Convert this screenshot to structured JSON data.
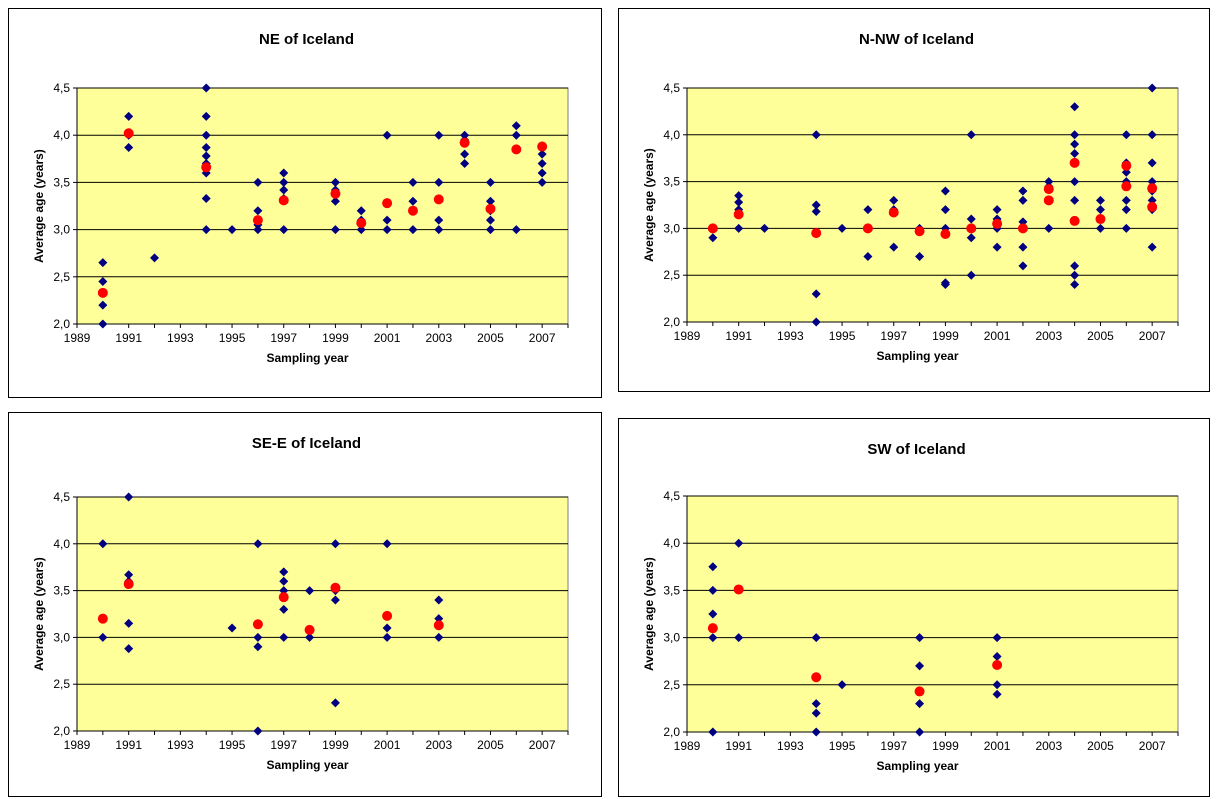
{
  "colors": {
    "plot_background": "#ffff99",
    "individual_marker": "#000080",
    "average_marker": "#ff0000",
    "gridline": "#000000"
  },
  "chart_data": [
    {
      "type": "scatter",
      "title": "NE of Iceland",
      "xlabel": "Sampling year",
      "ylabel": "Average age (years)",
      "xlim": [
        1989,
        2008
      ],
      "ylim": [
        2.0,
        4.5
      ],
      "xticks": [
        "1989",
        "1991",
        "1993",
        "1995",
        "1997",
        "1999",
        "2001",
        "2003",
        "2005",
        "2007"
      ],
      "yticks": [
        "2,0",
        "2,5",
        "3,0",
        "3,5",
        "4,0",
        "4,5"
      ],
      "grid": "horizontal",
      "legend": "none",
      "series": [
        {
          "marker": "diamond",
          "points": [
            [
              1990,
              2.0
            ],
            [
              1990,
              2.2
            ],
            [
              1990,
              2.45
            ],
            [
              1990,
              2.65
            ],
            [
              1991,
              3.87
            ],
            [
              1991,
              4.0
            ],
            [
              1991,
              4.2
            ],
            [
              1992,
              2.7
            ],
            [
              1994,
              3.0
            ],
            [
              1994,
              3.33
            ],
            [
              1994,
              3.6
            ],
            [
              1994,
              3.7
            ],
            [
              1994,
              3.78
            ],
            [
              1994,
              3.87
            ],
            [
              1994,
              4.0
            ],
            [
              1994,
              4.2
            ],
            [
              1994,
              4.5
            ],
            [
              1995,
              3.0
            ],
            [
              1996,
              3.0
            ],
            [
              1996,
              3.05
            ],
            [
              1996,
              3.2
            ],
            [
              1996,
              3.5
            ],
            [
              1997,
              3.0
            ],
            [
              1997,
              3.33
            ],
            [
              1997,
              3.42
            ],
            [
              1997,
              3.5
            ],
            [
              1997,
              3.6
            ],
            [
              1999,
              3.0
            ],
            [
              1999,
              3.3
            ],
            [
              1999,
              3.42
            ],
            [
              1999,
              3.5
            ],
            [
              2000,
              3.0
            ],
            [
              2000,
              3.05
            ],
            [
              2000,
              3.1
            ],
            [
              2000,
              3.2
            ],
            [
              2001,
              3.0
            ],
            [
              2001,
              3.1
            ],
            [
              2001,
              3.28
            ],
            [
              2001,
              4.0
            ],
            [
              2002,
              3.0
            ],
            [
              2002,
              3.2
            ],
            [
              2002,
              3.3
            ],
            [
              2002,
              3.5
            ],
            [
              2003,
              3.0
            ],
            [
              2003,
              3.1
            ],
            [
              2003,
              3.5
            ],
            [
              2003,
              4.0
            ],
            [
              2004,
              3.7
            ],
            [
              2004,
              3.8
            ],
            [
              2004,
              3.95
            ],
            [
              2004,
              4.0
            ],
            [
              2005,
              3.0
            ],
            [
              2005,
              3.1
            ],
            [
              2005,
              3.2
            ],
            [
              2005,
              3.3
            ],
            [
              2005,
              3.5
            ],
            [
              2006,
              3.0
            ],
            [
              2006,
              3.85
            ],
            [
              2006,
              4.0
            ],
            [
              2006,
              4.1
            ],
            [
              2007,
              3.5
            ],
            [
              2007,
              3.6
            ],
            [
              2007,
              3.7
            ],
            [
              2007,
              3.8
            ],
            [
              2007,
              3.87
            ]
          ]
        },
        {
          "marker": "circle",
          "points": [
            [
              1990,
              2.33
            ],
            [
              1991,
              4.02
            ],
            [
              1994,
              3.66
            ],
            [
              1996,
              3.1
            ],
            [
              1997,
              3.31
            ],
            [
              1999,
              3.38
            ],
            [
              2000,
              3.07
            ],
            [
              2001,
              3.28
            ],
            [
              2002,
              3.2
            ],
            [
              2003,
              3.32
            ],
            [
              2004,
              3.92
            ],
            [
              2005,
              3.22
            ],
            [
              2006,
              3.85
            ],
            [
              2007,
              3.88
            ]
          ]
        }
      ]
    },
    {
      "type": "scatter",
      "title": "N-NW of Iceland",
      "xlabel": "Sampling year",
      "ylabel": "Average age (years)",
      "xlim": [
        1989,
        2008
      ],
      "ylim": [
        2.0,
        4.5
      ],
      "xticks": [
        "1989",
        "1991",
        "1993",
        "1995",
        "1997",
        "1999",
        "2001",
        "2003",
        "2005",
        "2007"
      ],
      "yticks": [
        "2,0",
        "2,5",
        "3,0",
        "3,5",
        "4,0",
        "4,5"
      ],
      "grid": "horizontal",
      "legend": "none",
      "series": [
        {
          "marker": "diamond",
          "points": [
            [
              1990,
              2.9
            ],
            [
              1990,
              3.0
            ],
            [
              1991,
              3.0
            ],
            [
              1991,
              3.2
            ],
            [
              1991,
              3.28
            ],
            [
              1991,
              3.35
            ],
            [
              1992,
              3.0
            ],
            [
              1994,
              2.0
            ],
            [
              1994,
              2.3
            ],
            [
              1994,
              3.18
            ],
            [
              1994,
              3.25
            ],
            [
              1994,
              4.0
            ],
            [
              1995,
              3.0
            ],
            [
              1996,
              2.7
            ],
            [
              1996,
              3.0
            ],
            [
              1996,
              3.2
            ],
            [
              1997,
              2.8
            ],
            [
              1997,
              3.2
            ],
            [
              1997,
              3.3
            ],
            [
              1998,
              2.7
            ],
            [
              1998,
              3.0
            ],
            [
              1999,
              2.4
            ],
            [
              1999,
              2.42
            ],
            [
              1999,
              3.0
            ],
            [
              1999,
              3.2
            ],
            [
              1999,
              3.4
            ],
            [
              2000,
              2.5
            ],
            [
              2000,
              2.9
            ],
            [
              2000,
              3.0
            ],
            [
              2000,
              3.1
            ],
            [
              2000,
              4.0
            ],
            [
              2001,
              2.8
            ],
            [
              2001,
              3.0
            ],
            [
              2001,
              3.1
            ],
            [
              2001,
              3.2
            ],
            [
              2002,
              2.6
            ],
            [
              2002,
              2.8
            ],
            [
              2002,
              3.0
            ],
            [
              2002,
              3.07
            ],
            [
              2002,
              3.3
            ],
            [
              2002,
              3.4
            ],
            [
              2003,
              3.0
            ],
            [
              2003,
              3.3
            ],
            [
              2003,
              3.45
            ],
            [
              2003,
              3.5
            ],
            [
              2004,
              2.4
            ],
            [
              2004,
              2.5
            ],
            [
              2004,
              2.6
            ],
            [
              2004,
              3.3
            ],
            [
              2004,
              3.5
            ],
            [
              2004,
              3.8
            ],
            [
              2004,
              3.9
            ],
            [
              2004,
              4.0
            ],
            [
              2004,
              4.3
            ],
            [
              2005,
              3.0
            ],
            [
              2005,
              3.1
            ],
            [
              2005,
              3.2
            ],
            [
              2005,
              3.3
            ],
            [
              2006,
              3.0
            ],
            [
              2006,
              3.2
            ],
            [
              2006,
              3.3
            ],
            [
              2006,
              3.5
            ],
            [
              2006,
              3.6
            ],
            [
              2006,
              3.7
            ],
            [
              2006,
              4.0
            ],
            [
              2007,
              2.8
            ],
            [
              2007,
              3.2
            ],
            [
              2007,
              3.3
            ],
            [
              2007,
              3.4
            ],
            [
              2007,
              3.5
            ],
            [
              2007,
              3.7
            ],
            [
              2007,
              4.0
            ],
            [
              2007,
              4.5
            ]
          ]
        },
        {
          "marker": "circle",
          "points": [
            [
              1990,
              3.0
            ],
            [
              1991,
              3.15
            ],
            [
              1994,
              2.95
            ],
            [
              1996,
              3.0
            ],
            [
              1997,
              3.17
            ],
            [
              1998,
              2.97
            ],
            [
              1999,
              2.94
            ],
            [
              2000,
              3.0
            ],
            [
              2001,
              3.05
            ],
            [
              2002,
              3.0
            ],
            [
              2003,
              3.3
            ],
            [
              2003,
              3.42
            ],
            [
              2004,
              3.08
            ],
            [
              2004,
              3.7
            ],
            [
              2005,
              3.1
            ],
            [
              2006,
              3.45
            ],
            [
              2006,
              3.67
            ],
            [
              2007,
              3.23
            ],
            [
              2007,
              3.43
            ]
          ]
        }
      ]
    },
    {
      "type": "scatter",
      "title": "SE-E of Iceland",
      "xlabel": "Sampling year",
      "ylabel": "Average age (years)",
      "xlim": [
        1989,
        2008
      ],
      "ylim": [
        2.0,
        4.5
      ],
      "xticks": [
        "1989",
        "1991",
        "1993",
        "1995",
        "1997",
        "1999",
        "2001",
        "2003",
        "2005",
        "2007"
      ],
      "yticks": [
        "2,0",
        "2,5",
        "3,0",
        "3,5",
        "4,0",
        "4,5"
      ],
      "grid": "horizontal",
      "legend": "none",
      "series": [
        {
          "marker": "diamond",
          "points": [
            [
              1990,
              3.0
            ],
            [
              1990,
              4.0
            ],
            [
              1991,
              2.88
            ],
            [
              1991,
              3.15
            ],
            [
              1991,
              3.6
            ],
            [
              1991,
              3.67
            ],
            [
              1991,
              4.5
            ],
            [
              1995,
              3.1
            ],
            [
              1996,
              2.0
            ],
            [
              1996,
              2.9
            ],
            [
              1996,
              3.0
            ],
            [
              1996,
              4.0
            ],
            [
              1997,
              3.0
            ],
            [
              1997,
              3.3
            ],
            [
              1997,
              3.5
            ],
            [
              1997,
              3.6
            ],
            [
              1997,
              3.7
            ],
            [
              1998,
              3.0
            ],
            [
              1998,
              3.5
            ],
            [
              1999,
              2.3
            ],
            [
              1999,
              3.4
            ],
            [
              1999,
              3.5
            ],
            [
              1999,
              4.0
            ],
            [
              2001,
              3.0
            ],
            [
              2001,
              3.1
            ],
            [
              2001,
              4.0
            ],
            [
              2003,
              3.0
            ],
            [
              2003,
              3.2
            ],
            [
              2003,
              3.4
            ]
          ]
        },
        {
          "marker": "circle",
          "points": [
            [
              1990,
              3.2
            ],
            [
              1991,
              3.57
            ],
            [
              1996,
              3.14
            ],
            [
              1997,
              3.43
            ],
            [
              1998,
              3.08
            ],
            [
              1999,
              3.53
            ],
            [
              2001,
              3.23
            ],
            [
              2003,
              3.13
            ]
          ]
        }
      ]
    },
    {
      "type": "scatter",
      "title": "SW of Iceland",
      "xlabel": "Sampling year",
      "ylabel": "Average age (years)",
      "xlim": [
        1989,
        2008
      ],
      "ylim": [
        2.0,
        4.5
      ],
      "xticks": [
        "1989",
        "1991",
        "1993",
        "1995",
        "1997",
        "1999",
        "2001",
        "2003",
        "2005",
        "2007"
      ],
      "yticks": [
        "2,0",
        "2,5",
        "3,0",
        "3,5",
        "4,0",
        "4,5"
      ],
      "grid": "horizontal",
      "legend": "none",
      "series": [
        {
          "marker": "diamond",
          "points": [
            [
              1990,
              2.0
            ],
            [
              1990,
              3.0
            ],
            [
              1990,
              3.25
            ],
            [
              1990,
              3.5
            ],
            [
              1990,
              3.75
            ],
            [
              1991,
              3.0
            ],
            [
              1991,
              4.0
            ],
            [
              1994,
              2.0
            ],
            [
              1994,
              2.2
            ],
            [
              1994,
              2.3
            ],
            [
              1994,
              3.0
            ],
            [
              1995,
              2.5
            ],
            [
              1998,
              2.0
            ],
            [
              1998,
              2.3
            ],
            [
              1998,
              2.7
            ],
            [
              1998,
              3.0
            ],
            [
              2001,
              2.4
            ],
            [
              2001,
              2.5
            ],
            [
              2001,
              2.8
            ],
            [
              2001,
              3.0
            ]
          ]
        },
        {
          "marker": "circle",
          "points": [
            [
              1990,
              3.1
            ],
            [
              1991,
              3.51
            ],
            [
              1994,
              2.58
            ],
            [
              1998,
              2.43
            ],
            [
              2001,
              2.71
            ]
          ]
        }
      ]
    }
  ]
}
